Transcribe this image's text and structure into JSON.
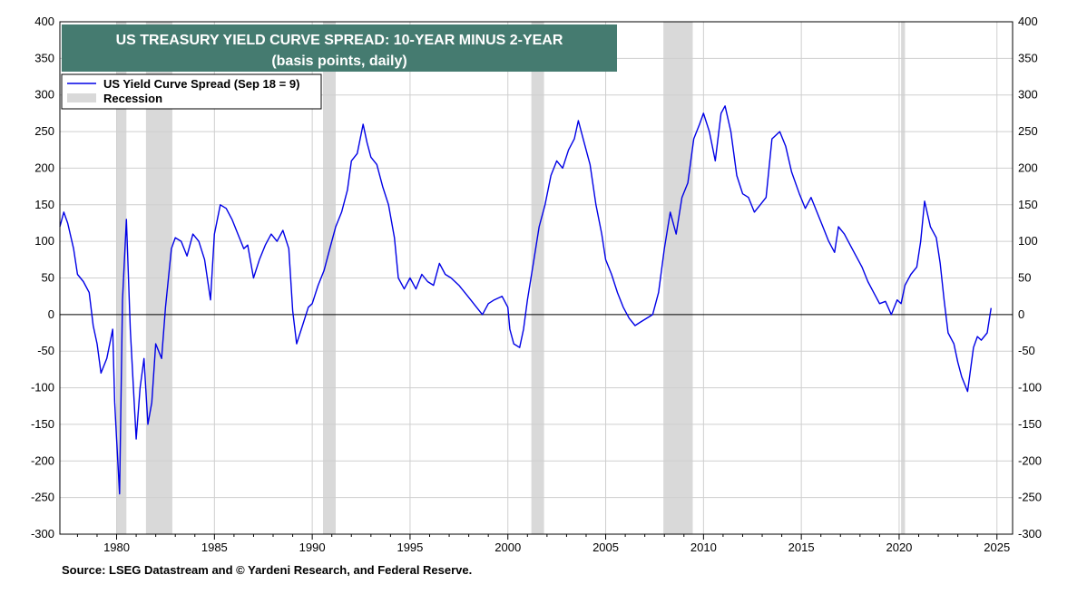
{
  "chart_data": {
    "type": "line",
    "title": "US TREASURY YIELD CURVE SPREAD: 10-YEAR MINUS 2-YEAR",
    "subtitle": "(basis points, daily)",
    "ylim": [
      -300,
      400
    ],
    "y_ticks": [
      -300,
      -250,
      -200,
      -150,
      -100,
      -50,
      0,
      50,
      100,
      150,
      200,
      250,
      300,
      350,
      400
    ],
    "xlim": [
      1977.1,
      2025.8
    ],
    "x_ticks": [
      1980,
      1985,
      1990,
      1995,
      2000,
      2005,
      2010,
      2015,
      2020,
      2025
    ],
    "grid": true,
    "legend_placement": "top-left",
    "series": [
      {
        "name": "US Yield Curve Spread (Sep 18 = 9)",
        "color": "#0000e6",
        "points": [
          [
            1977.1,
            120
          ],
          [
            1977.3,
            140
          ],
          [
            1977.5,
            125
          ],
          [
            1977.8,
            90
          ],
          [
            1978.0,
            55
          ],
          [
            1978.3,
            45
          ],
          [
            1978.6,
            30
          ],
          [
            1978.8,
            -15
          ],
          [
            1979.0,
            -40
          ],
          [
            1979.2,
            -80
          ],
          [
            1979.5,
            -60
          ],
          [
            1979.8,
            -20
          ],
          [
            1979.9,
            -120
          ],
          [
            1980.0,
            -170
          ],
          [
            1980.15,
            -245
          ],
          [
            1980.3,
            20
          ],
          [
            1980.5,
            130
          ],
          [
            1980.7,
            -20
          ],
          [
            1980.9,
            -120
          ],
          [
            1981.0,
            -170
          ],
          [
            1981.2,
            -100
          ],
          [
            1981.4,
            -60
          ],
          [
            1981.6,
            -150
          ],
          [
            1981.8,
            -120
          ],
          [
            1982.0,
            -40
          ],
          [
            1982.3,
            -60
          ],
          [
            1982.5,
            10
          ],
          [
            1982.8,
            90
          ],
          [
            1983.0,
            105
          ],
          [
            1983.3,
            100
          ],
          [
            1983.6,
            80
          ],
          [
            1983.9,
            110
          ],
          [
            1984.2,
            100
          ],
          [
            1984.5,
            75
          ],
          [
            1984.8,
            20
          ],
          [
            1985.0,
            110
          ],
          [
            1985.3,
            150
          ],
          [
            1985.6,
            145
          ],
          [
            1985.9,
            130
          ],
          [
            1986.2,
            110
          ],
          [
            1986.5,
            90
          ],
          [
            1986.7,
            95
          ],
          [
            1987.0,
            50
          ],
          [
            1987.3,
            75
          ],
          [
            1987.6,
            95
          ],
          [
            1987.9,
            110
          ],
          [
            1988.2,
            100
          ],
          [
            1988.5,
            115
          ],
          [
            1988.8,
            90
          ],
          [
            1989.0,
            5
          ],
          [
            1989.2,
            -40
          ],
          [
            1989.5,
            -15
          ],
          [
            1989.8,
            10
          ],
          [
            1990.0,
            15
          ],
          [
            1990.3,
            40
          ],
          [
            1990.6,
            60
          ],
          [
            1990.9,
            90
          ],
          [
            1991.2,
            120
          ],
          [
            1991.5,
            140
          ],
          [
            1991.8,
            170
          ],
          [
            1992.0,
            210
          ],
          [
            1992.3,
            220
          ],
          [
            1992.6,
            260
          ],
          [
            1992.8,
            235
          ],
          [
            1993.0,
            215
          ],
          [
            1993.3,
            205
          ],
          [
            1993.6,
            175
          ],
          [
            1993.9,
            150
          ],
          [
            1994.2,
            105
          ],
          [
            1994.4,
            50
          ],
          [
            1994.7,
            35
          ],
          [
            1995.0,
            50
          ],
          [
            1995.3,
            35
          ],
          [
            1995.6,
            55
          ],
          [
            1995.9,
            45
          ],
          [
            1996.2,
            40
          ],
          [
            1996.5,
            70
          ],
          [
            1996.8,
            55
          ],
          [
            1997.1,
            50
          ],
          [
            1997.5,
            40
          ],
          [
            1997.8,
            30
          ],
          [
            1998.1,
            20
          ],
          [
            1998.4,
            10
          ],
          [
            1998.7,
            0
          ],
          [
            1999.0,
            15
          ],
          [
            1999.3,
            20
          ],
          [
            1999.7,
            25
          ],
          [
            2000.0,
            10
          ],
          [
            2000.1,
            -20
          ],
          [
            2000.3,
            -40
          ],
          [
            2000.6,
            -45
          ],
          [
            2000.8,
            -20
          ],
          [
            2001.0,
            20
          ],
          [
            2001.3,
            70
          ],
          [
            2001.6,
            120
          ],
          [
            2001.9,
            150
          ],
          [
            2002.2,
            190
          ],
          [
            2002.5,
            210
          ],
          [
            2002.8,
            200
          ],
          [
            2003.1,
            225
          ],
          [
            2003.4,
            240
          ],
          [
            2003.6,
            265
          ],
          [
            2003.9,
            235
          ],
          [
            2004.2,
            205
          ],
          [
            2004.5,
            150
          ],
          [
            2004.8,
            110
          ],
          [
            2005.0,
            75
          ],
          [
            2005.3,
            55
          ],
          [
            2005.6,
            30
          ],
          [
            2005.9,
            10
          ],
          [
            2006.2,
            -5
          ],
          [
            2006.5,
            -15
          ],
          [
            2006.8,
            -10
          ],
          [
            2007.1,
            -5
          ],
          [
            2007.4,
            0
          ],
          [
            2007.7,
            30
          ],
          [
            2008.0,
            90
          ],
          [
            2008.3,
            140
          ],
          [
            2008.6,
            110
          ],
          [
            2008.9,
            160
          ],
          [
            2009.2,
            180
          ],
          [
            2009.5,
            240
          ],
          [
            2009.8,
            260
          ],
          [
            2010.0,
            275
          ],
          [
            2010.3,
            250
          ],
          [
            2010.6,
            210
          ],
          [
            2010.9,
            275
          ],
          [
            2011.1,
            285
          ],
          [
            2011.4,
            250
          ],
          [
            2011.7,
            190
          ],
          [
            2012.0,
            165
          ],
          [
            2012.3,
            160
          ],
          [
            2012.6,
            140
          ],
          [
            2012.9,
            150
          ],
          [
            2013.2,
            160
          ],
          [
            2013.5,
            240
          ],
          [
            2013.9,
            250
          ],
          [
            2014.2,
            230
          ],
          [
            2014.5,
            195
          ],
          [
            2014.9,
            165
          ],
          [
            2015.2,
            145
          ],
          [
            2015.5,
            160
          ],
          [
            2015.8,
            140
          ],
          [
            2016.1,
            120
          ],
          [
            2016.4,
            100
          ],
          [
            2016.7,
            85
          ],
          [
            2016.9,
            120
          ],
          [
            2017.2,
            110
          ],
          [
            2017.5,
            95
          ],
          [
            2017.8,
            80
          ],
          [
            2018.1,
            65
          ],
          [
            2018.4,
            45
          ],
          [
            2018.7,
            30
          ],
          [
            2019.0,
            15
          ],
          [
            2019.3,
            18
          ],
          [
            2019.6,
            0
          ],
          [
            2019.9,
            20
          ],
          [
            2020.1,
            15
          ],
          [
            2020.3,
            40
          ],
          [
            2020.6,
            55
          ],
          [
            2020.9,
            65
          ],
          [
            2021.1,
            100
          ],
          [
            2021.3,
            155
          ],
          [
            2021.6,
            120
          ],
          [
            2021.9,
            105
          ],
          [
            2022.1,
            70
          ],
          [
            2022.3,
            20
          ],
          [
            2022.5,
            -25
          ],
          [
            2022.8,
            -40
          ],
          [
            2023.0,
            -65
          ],
          [
            2023.2,
            -85
          ],
          [
            2023.5,
            -105
          ],
          [
            2023.8,
            -45
          ],
          [
            2024.0,
            -30
          ],
          [
            2024.2,
            -35
          ],
          [
            2024.5,
            -25
          ],
          [
            2024.7,
            9
          ]
        ]
      }
    ],
    "recessions": [
      [
        1980.0,
        1980.5
      ],
      [
        1981.5,
        1982.85
      ],
      [
        1990.55,
        1991.2
      ],
      [
        2001.2,
        2001.85
      ],
      [
        2007.95,
        2009.45
      ],
      [
        2020.1,
        2020.3
      ]
    ],
    "legend": {
      "line_label": "US Yield Curve Spread (Sep 18 = 9)",
      "recession_label": "Recession"
    },
    "colors": {
      "line": "#0000e6",
      "recession": "#d9d9d9",
      "title_bg": "#457b70",
      "zero_line": "#000000"
    }
  },
  "source": "Source: LSEG Datastream and © Yardeni Research, and Federal Reserve."
}
